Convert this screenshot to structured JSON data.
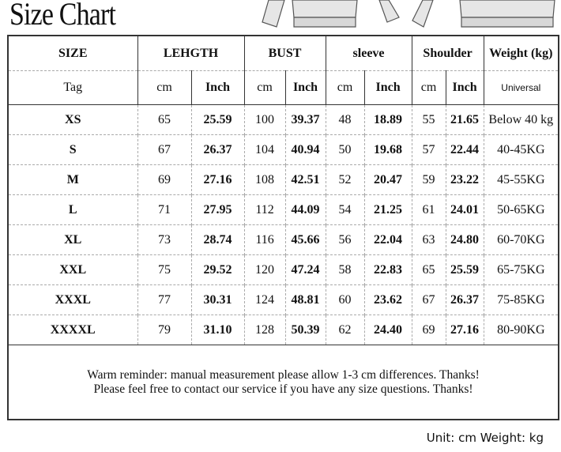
{
  "title": "Size Chart",
  "header_top": [
    "SIZE",
    "LEHGTH",
    "BUST",
    "sleeve",
    "Shoulder",
    "Weight (kg)"
  ],
  "header_sub": [
    "Tag",
    "cm",
    "Inch",
    "cm",
    "Inch",
    "cm",
    "Inch",
    "cm",
    "Inch",
    "Universal"
  ],
  "rows": [
    [
      "XS",
      "65",
      "25.59",
      "100",
      "39.37",
      "48",
      "18.89",
      "55",
      "21.65",
      "Below 40 kg"
    ],
    [
      "S",
      "67",
      "26.37",
      "104",
      "40.94",
      "50",
      "19.68",
      "57",
      "22.44",
      "40-45KG"
    ],
    [
      "M",
      "69",
      "27.16",
      "108",
      "42.51",
      "52",
      "20.47",
      "59",
      "23.22",
      "45-55KG"
    ],
    [
      "L",
      "71",
      "27.95",
      "112",
      "44.09",
      "54",
      "21.25",
      "61",
      "24.01",
      "50-65KG"
    ],
    [
      "XL",
      "73",
      "28.74",
      "116",
      "45.66",
      "56",
      "22.04",
      "63",
      "24.80",
      "60-70KG"
    ],
    [
      "XXL",
      "75",
      "29.52",
      "120",
      "47.24",
      "58",
      "22.83",
      "65",
      "25.59",
      "65-75KG"
    ],
    [
      "XXXL",
      "77",
      "30.31",
      "124",
      "48.81",
      "60",
      "23.62",
      "67",
      "26.37",
      "75-85KG"
    ],
    [
      "XXXXL",
      "79",
      "31.10",
      "128",
      "50.39",
      "62",
      "24.40",
      "69",
      "27.16",
      "80-90KG"
    ]
  ],
  "notes": [
    "Warm reminder: manual measurement please allow 1-3 cm differences. Thanks!",
    "Please feel free to contact our service if you have any size questions. Thanks!"
  ],
  "unit_text": "Unit: cm Weight: kg"
}
